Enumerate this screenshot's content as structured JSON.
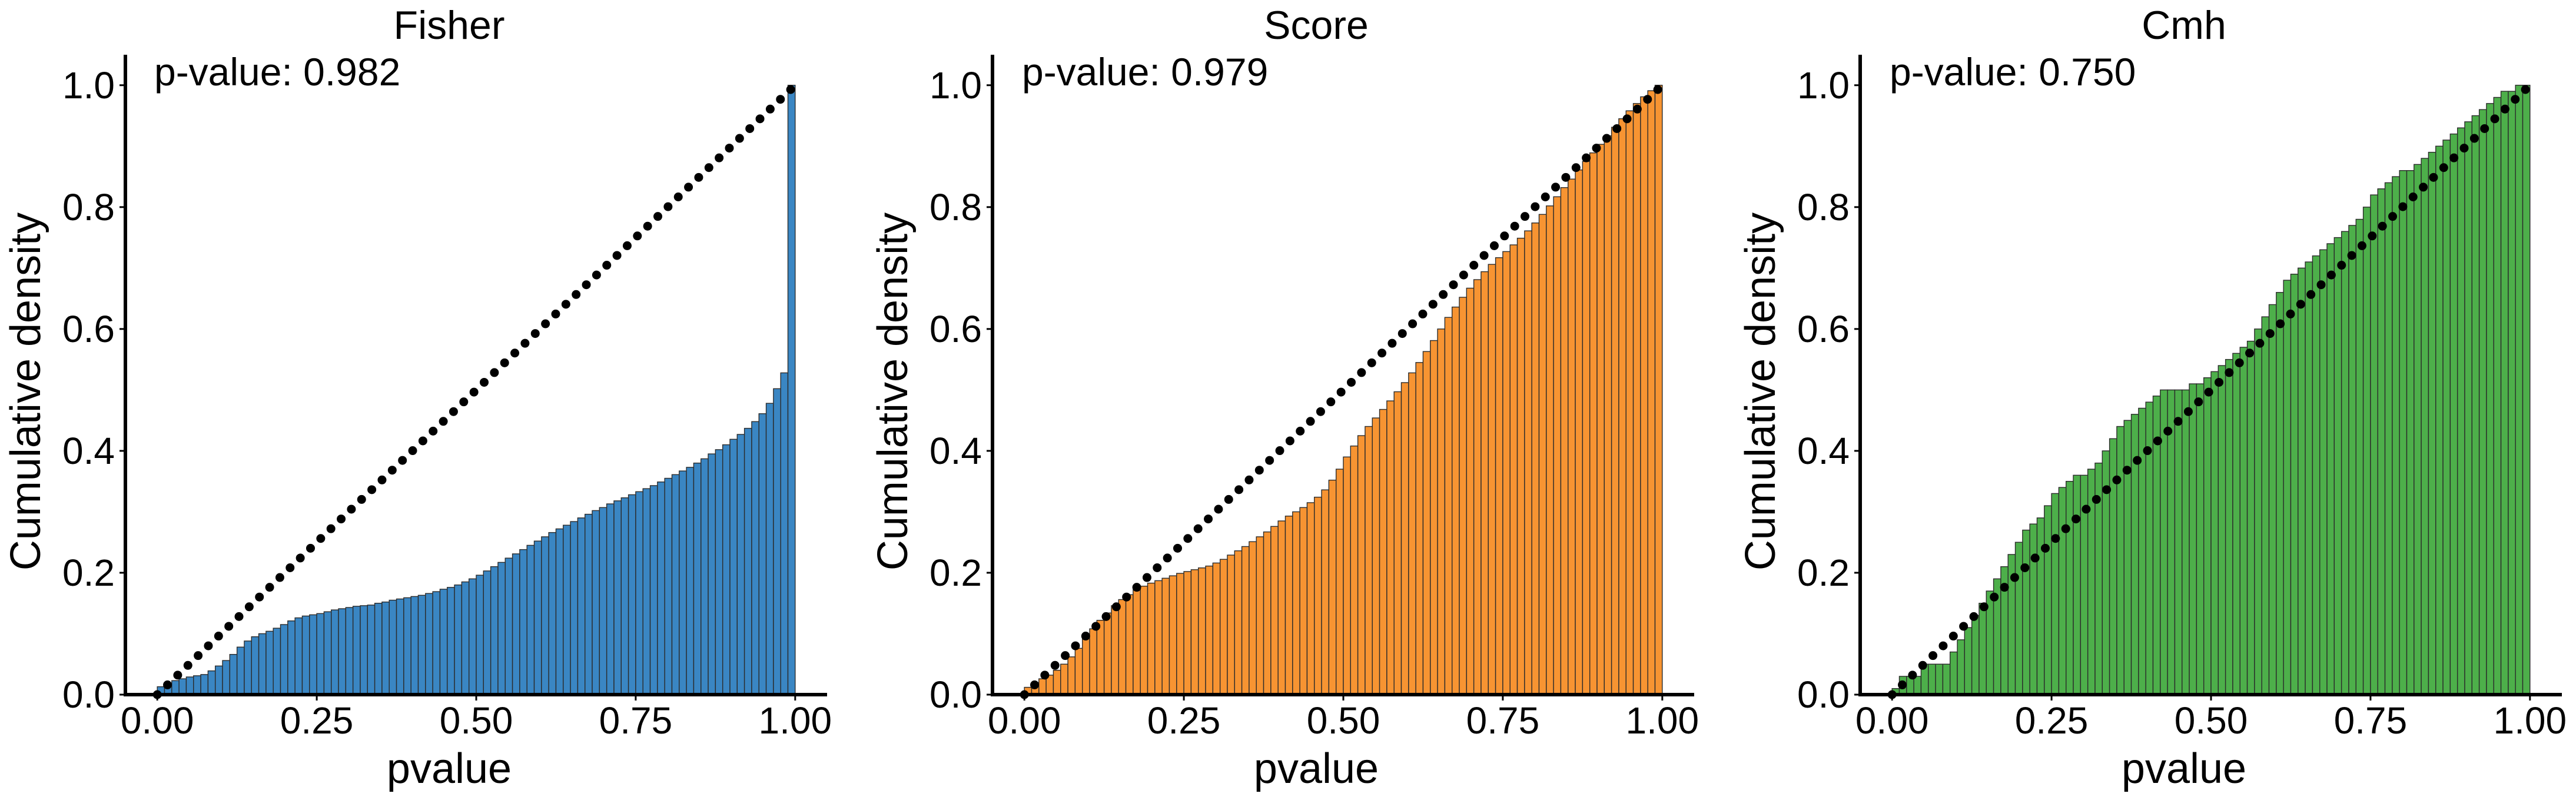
{
  "figure": {
    "background": "#ffffff",
    "reference_line": {
      "color": "#000000",
      "style": "dotted",
      "from": [
        0,
        0
      ],
      "to": [
        1,
        1
      ]
    }
  },
  "chart_data": [
    {
      "type": "bar",
      "subtype": "cumulative histogram",
      "title": "Fisher",
      "xlabel": "pvalue",
      "ylabel": "Cumulative density",
      "annotation": "p-value: 0.982",
      "xlim": [
        -0.05,
        1.05
      ],
      "ylim": [
        0,
        1.05
      ],
      "xticks": [
        "0.00",
        "0.25",
        "0.50",
        "0.75",
        "1.00"
      ],
      "yticks": [
        "0.0",
        "0.2",
        "0.4",
        "0.6",
        "0.8",
        "1.0"
      ],
      "color": "#3a86c3",
      "values": [
        0.013,
        0.019,
        0.023,
        0.026,
        0.029,
        0.031,
        0.033,
        0.039,
        0.047,
        0.056,
        0.066,
        0.078,
        0.088,
        0.095,
        0.1,
        0.104,
        0.109,
        0.115,
        0.121,
        0.126,
        0.129,
        0.131,
        0.133,
        0.136,
        0.139,
        0.141,
        0.143,
        0.145,
        0.146,
        0.147,
        0.15,
        0.152,
        0.155,
        0.157,
        0.159,
        0.161,
        0.163,
        0.166,
        0.169,
        0.173,
        0.176,
        0.18,
        0.185,
        0.19,
        0.196,
        0.203,
        0.21,
        0.217,
        0.224,
        0.231,
        0.238,
        0.245,
        0.252,
        0.259,
        0.266,
        0.272,
        0.278,
        0.284,
        0.29,
        0.296,
        0.302,
        0.307,
        0.313,
        0.318,
        0.323,
        0.328,
        0.333,
        0.338,
        0.343,
        0.349,
        0.355,
        0.361,
        0.367,
        0.373,
        0.38,
        0.387,
        0.395,
        0.402,
        0.41,
        0.419,
        0.427,
        0.437,
        0.448,
        0.461,
        0.478,
        0.502,
        0.528,
        1.0
      ]
    },
    {
      "type": "bar",
      "subtype": "cumulative histogram",
      "title": "Score",
      "xlabel": "pvalue",
      "ylabel": "Cumulative density",
      "annotation": "p-value: 0.979",
      "xlim": [
        -0.05,
        1.05
      ],
      "ylim": [
        0,
        1.05
      ],
      "xticks": [
        "0.00",
        "0.25",
        "0.50",
        "0.75",
        "1.00"
      ],
      "yticks": [
        "0.0",
        "0.2",
        "0.4",
        "0.6",
        "0.8",
        "1.0"
      ],
      "color": "#f79432",
      "values": [
        0.012,
        0.02,
        0.026,
        0.032,
        0.04,
        0.05,
        0.062,
        0.076,
        0.092,
        0.108,
        0.122,
        0.134,
        0.146,
        0.156,
        0.164,
        0.172,
        0.178,
        0.183,
        0.187,
        0.191,
        0.195,
        0.199,
        0.202,
        0.205,
        0.208,
        0.211,
        0.216,
        0.222,
        0.229,
        0.236,
        0.243,
        0.251,
        0.259,
        0.267,
        0.276,
        0.285,
        0.293,
        0.3,
        0.307,
        0.315,
        0.324,
        0.336,
        0.352,
        0.37,
        0.39,
        0.408,
        0.425,
        0.44,
        0.454,
        0.468,
        0.482,
        0.497,
        0.512,
        0.528,
        0.545,
        0.563,
        0.581,
        0.6,
        0.619,
        0.636,
        0.652,
        0.667,
        0.681,
        0.694,
        0.706,
        0.717,
        0.727,
        0.738,
        0.749,
        0.761,
        0.774,
        0.788,
        0.802,
        0.817,
        0.832,
        0.846,
        0.861,
        0.875,
        0.889,
        0.903,
        0.917,
        0.931,
        0.945,
        0.958,
        0.97,
        0.981,
        0.991,
        1.0
      ]
    },
    {
      "type": "bar",
      "subtype": "cumulative histogram",
      "title": "Cmh",
      "xlabel": "pvalue",
      "ylabel": "Cumulative density",
      "annotation": "p-value: 0.750",
      "xlim": [
        -0.05,
        1.05
      ],
      "ylim": [
        0,
        1.05
      ],
      "xticks": [
        "0.00",
        "0.25",
        "0.50",
        "0.75",
        "1.00"
      ],
      "yticks": [
        "0.0",
        "0.2",
        "0.4",
        "0.6",
        "0.8",
        "1.0"
      ],
      "color": "#4daf4a",
      "values": [
        0.01,
        0.03,
        0.03,
        0.03,
        0.05,
        0.05,
        0.05,
        0.05,
        0.07,
        0.09,
        0.11,
        0.13,
        0.15,
        0.17,
        0.19,
        0.21,
        0.23,
        0.25,
        0.27,
        0.28,
        0.29,
        0.31,
        0.33,
        0.34,
        0.35,
        0.36,
        0.36,
        0.37,
        0.38,
        0.4,
        0.42,
        0.44,
        0.45,
        0.46,
        0.47,
        0.48,
        0.49,
        0.5,
        0.5,
        0.5,
        0.5,
        0.51,
        0.51,
        0.52,
        0.53,
        0.54,
        0.55,
        0.56,
        0.57,
        0.58,
        0.6,
        0.62,
        0.64,
        0.66,
        0.68,
        0.69,
        0.7,
        0.71,
        0.72,
        0.73,
        0.74,
        0.75,
        0.76,
        0.77,
        0.78,
        0.8,
        0.82,
        0.83,
        0.84,
        0.85,
        0.86,
        0.86,
        0.87,
        0.88,
        0.89,
        0.9,
        0.91,
        0.92,
        0.93,
        0.94,
        0.95,
        0.96,
        0.97,
        0.98,
        0.99,
        0.99,
        1.0,
        1.0
      ]
    }
  ]
}
